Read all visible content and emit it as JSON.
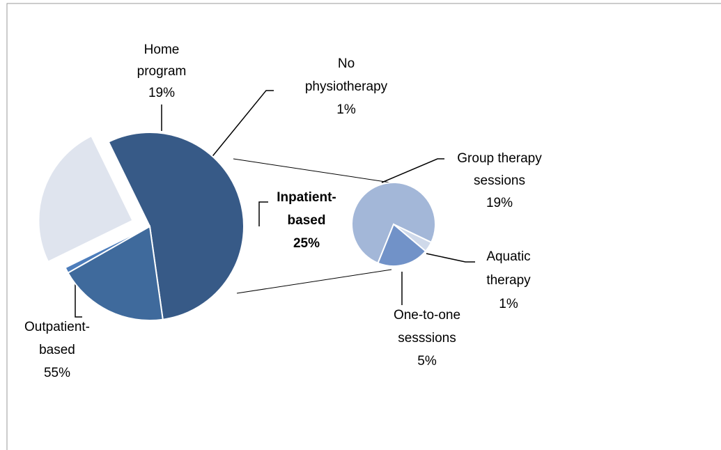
{
  "chart_data": {
    "type": "pie-of-pie",
    "categories": [
      "Outpatient-based",
      "Home program",
      "No physiotherapy",
      "Inpatient-based"
    ],
    "values": [
      55,
      19,
      1,
      25
    ],
    "value_labels": [
      "55%",
      "19%",
      "1%",
      "25%"
    ],
    "colors": [
      "#375a87",
      "#3f6a9c",
      "#4d7dbb",
      "#dfe4ee"
    ],
    "exploded": 3,
    "secondary": {
      "categories": [
        "Group therapy sessions",
        "Aquatic therapy",
        "One-to-one sesssions"
      ],
      "values": [
        19,
        1,
        5
      ],
      "value_labels": [
        "19%",
        "1%",
        "5%"
      ],
      "colors": [
        "#a3b7d8",
        "#cfd9ea",
        "#7192c8"
      ]
    }
  }
}
